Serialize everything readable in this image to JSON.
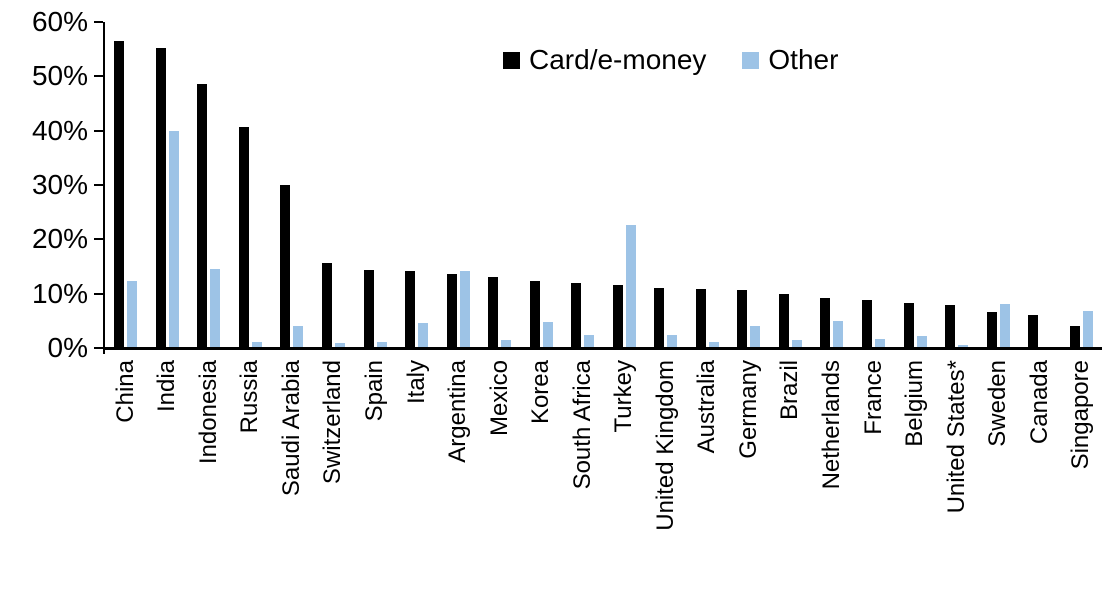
{
  "chart_data": {
    "type": "bar",
    "title": "",
    "xlabel": "",
    "ylabel": "",
    "ylim": [
      0,
      60
    ],
    "ytick_labels": [
      "0%",
      "10%",
      "20%",
      "30%",
      "40%",
      "50%",
      "60%"
    ],
    "ytick_values": [
      0,
      10,
      20,
      30,
      40,
      50,
      60
    ],
    "grid": false,
    "legend_position": "top-center",
    "categories": [
      "China",
      "India",
      "Indonesia",
      "Russia",
      "Saudi Arabia",
      "Switzerland",
      "Spain",
      "Italy",
      "Argentina",
      "Mexico",
      "Korea",
      "South Africa",
      "Turkey",
      "United Kingdom",
      "Australia",
      "Germany",
      "Brazil",
      "Netherlands",
      "France",
      "Belgium",
      "United States*",
      "Sweden",
      "Canada",
      "Singapore"
    ],
    "series": [
      {
        "name": "Card/e-money",
        "color": "#000000",
        "values": [
          56.4,
          55.1,
          48.4,
          40.5,
          29.8,
          15.5,
          14.1,
          14.0,
          13.4,
          12.9,
          12.2,
          11.7,
          11.5,
          10.9,
          10.7,
          10.5,
          9.8,
          9.1,
          8.7,
          8.1,
          7.8,
          6.5,
          5.9,
          3.8
        ]
      },
      {
        "name": "Other",
        "color": "#9DC3E6",
        "values": [
          12.2,
          39.7,
          14.4,
          1.0,
          3.8,
          0.7,
          1.0,
          4.5,
          13.9,
          1.3,
          4.6,
          2.2,
          22.5,
          2.3,
          0.9,
          3.8,
          1.2,
          4.8,
          1.5,
          2.0,
          0.3,
          8.0,
          0.0,
          6.6
        ]
      }
    ]
  },
  "legend": {
    "items": [
      {
        "label": "Card/e-money",
        "color": "#000000"
      },
      {
        "label": "Other",
        "color": "#9DC3E6"
      }
    ]
  }
}
